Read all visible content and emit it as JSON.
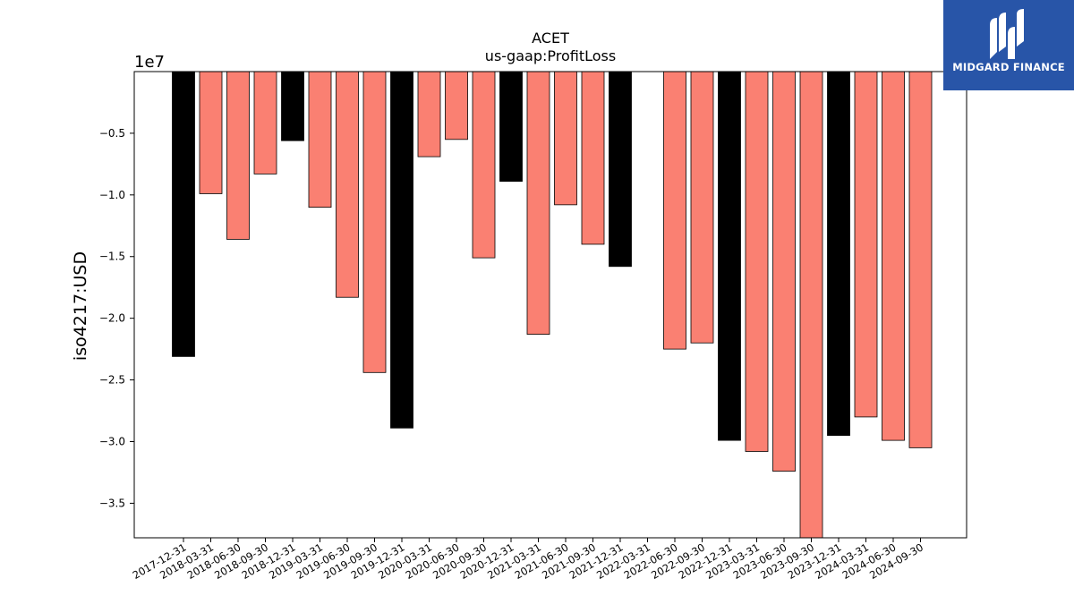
{
  "chart_data": {
    "type": "bar",
    "title": "ACET",
    "subtitle": "us-gaap:ProfitLoss",
    "ylabel": "iso4217:USD",
    "xlabel": "",
    "offset_label": "1e7",
    "ylim": [
      -3.78,
      0.0
    ],
    "yticks": [
      -0.5,
      -1.0,
      -1.5,
      -2.0,
      -2.5,
      -3.0,
      -3.5
    ],
    "ytick_labels": [
      "−0.5",
      "−1.0",
      "−1.5",
      "−2.0",
      "−2.5",
      "−3.0",
      "−3.5"
    ],
    "grid": false,
    "categories": [
      "2017-12-31",
      "2018-03-31",
      "2018-06-30",
      "2018-09-30",
      "2018-12-31",
      "2019-03-31",
      "2019-06-30",
      "2019-09-30",
      "2019-12-31",
      "2020-03-31",
      "2020-06-30",
      "2020-09-30",
      "2020-12-31",
      "2021-03-31",
      "2021-06-30",
      "2021-09-30",
      "2021-12-31",
      "2022-03-31",
      "2022-06-30",
      "2022-09-30",
      "2022-12-31",
      "2023-03-31",
      "2023-06-30",
      "2023-09-30",
      "2023-12-31",
      "2024-03-31",
      "2024-06-30",
      "2024-09-30"
    ],
    "values": [
      -2.31,
      -0.99,
      -1.36,
      -0.83,
      -0.56,
      -1.1,
      -1.83,
      -2.44,
      -2.89,
      -0.69,
      -0.55,
      -1.51,
      -0.89,
      -2.13,
      -1.08,
      -1.4,
      -1.58,
      null,
      -2.25,
      -2.2,
      -2.99,
      -3.08,
      -3.24,
      -3.78,
      -2.95,
      -2.8,
      -2.99,
      -3.05
    ],
    "bar_types": [
      "annual",
      "quarter",
      "quarter",
      "quarter",
      "annual",
      "quarter",
      "quarter",
      "quarter",
      "annual",
      "quarter",
      "quarter",
      "quarter",
      "annual",
      "quarter",
      "quarter",
      "quarter",
      "annual",
      "quarter",
      "quarter",
      "quarter",
      "annual",
      "quarter",
      "quarter",
      "quarter",
      "annual",
      "quarter",
      "quarter",
      "quarter"
    ],
    "colors": {
      "annual": "#000000",
      "quarter": "#fa8072",
      "edge": "#000000"
    }
  },
  "logo": {
    "text": "MIDGARD FINANCE",
    "background": "#2855a8"
  }
}
